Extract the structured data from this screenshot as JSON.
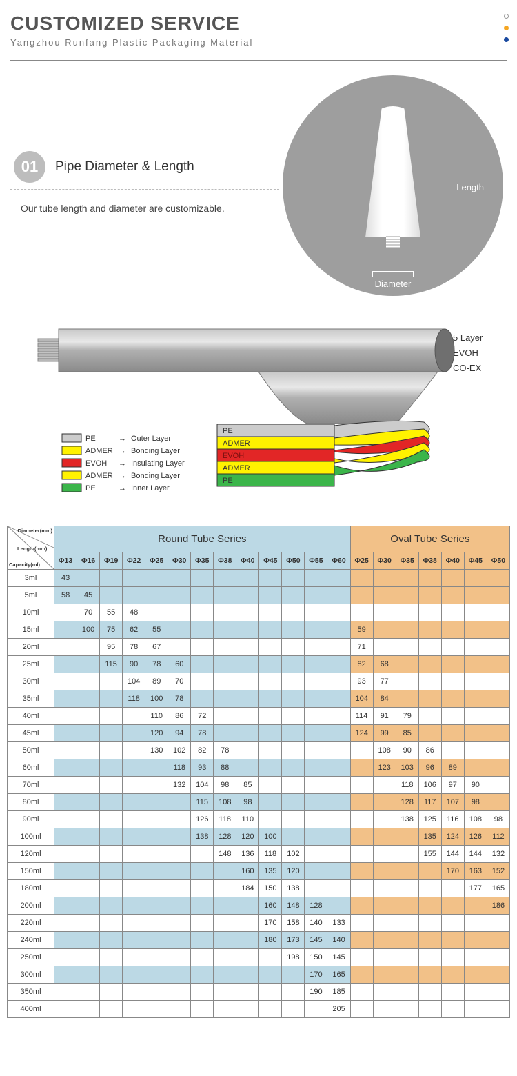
{
  "header": {
    "title": "CUSTOMIZED SERVICE",
    "subtitle": "Yangzhou Runfang Plastic Packaging Material",
    "dot_colors": [
      "#ffffff",
      "#f5a623",
      "#1a4aa0"
    ],
    "dot_border": "#999999"
  },
  "section1": {
    "step_number": "01",
    "step_title": "Pipe Diameter & Length",
    "description": "Our tube length and diameter are customizable.",
    "length_label": "Length",
    "diameter_label": "Diameter",
    "circle_bg": "#9e9e9e",
    "badge_bg": "#bdbdbd"
  },
  "diagram": {
    "side_labels": [
      "5 Layer",
      "EVOH",
      "CO-EX"
    ],
    "tube_color": "#9e9e9e",
    "arrow_color": "#444444",
    "legend": [
      {
        "color": "#cccccc",
        "name": "PE",
        "desc": "Outer Layer"
      },
      {
        "color": "#fff200",
        "name": "ADMER",
        "desc": "Bonding Layer"
      },
      {
        "color": "#e22626",
        "name": "EVOH",
        "desc": "Insulating Layer"
      },
      {
        "color": "#fff200",
        "name": "ADMER",
        "desc": "Bonding Layer"
      },
      {
        "color": "#3bb54a",
        "name": "PE",
        "desc": "Inner Layer"
      }
    ],
    "stack": [
      {
        "color": "#cccccc",
        "label": "PE",
        "text": "#333333"
      },
      {
        "color": "#fff200",
        "label": "ADMER",
        "text": "#333333"
      },
      {
        "color": "#e22626",
        "label": "EVOH",
        "text": "#7a1010"
      },
      {
        "color": "#fff200",
        "label": "ADMER",
        "text": "#333333"
      },
      {
        "color": "#3bb54a",
        "label": "PE",
        "text": "#333333"
      }
    ]
  },
  "table": {
    "corner_labels": {
      "diameter": "Diameter(mm)",
      "length": "Length(mm)",
      "capacity": "Capacity(ml)"
    },
    "colors": {
      "round_header_bg": "#bcd9e5",
      "oval_header_bg": "#f2c188",
      "round_row_bg": "#bcd9e5",
      "oval_row_bg": "#f2c188",
      "white_bg": "#ffffff",
      "border": "#888888",
      "corner_bg": "#ffffff"
    },
    "round": {
      "title": "Round Tube Series",
      "diameters": [
        "Φ13",
        "Φ16",
        "Φ19",
        "Φ22",
        "Φ25",
        "Φ30",
        "Φ35",
        "Φ38",
        "Φ40",
        "Φ45",
        "Φ50",
        "Φ55",
        "Φ60"
      ]
    },
    "oval": {
      "title": "Oval Tube Series",
      "diameters": [
        "Φ25",
        "Φ30",
        "Φ35",
        "Φ38",
        "Φ40",
        "Φ45",
        "Φ50"
      ]
    },
    "capacities": [
      "3ml",
      "5ml",
      "10ml",
      "15ml",
      "20ml",
      "25ml",
      "30ml",
      "35ml",
      "40ml",
      "45ml",
      "50ml",
      "60ml",
      "70ml",
      "80ml",
      "90ml",
      "100ml",
      "120ml",
      "150ml",
      "180ml",
      "200ml",
      "220ml",
      "240ml",
      "250ml",
      "300ml",
      "350ml",
      "400ml"
    ],
    "shaded_rows": [
      0,
      1,
      3,
      5,
      7,
      9,
      11,
      13,
      15,
      17,
      19,
      21,
      23
    ],
    "round_data": [
      [
        "43",
        "",
        "",
        "",
        "",
        "",
        "",
        "",
        "",
        "",
        "",
        "",
        ""
      ],
      [
        "58",
        "45",
        "",
        "",
        "",
        "",
        "",
        "",
        "",
        "",
        "",
        "",
        ""
      ],
      [
        "",
        "70",
        "55",
        "48",
        "",
        "",
        "",
        "",
        "",
        "",
        "",
        "",
        ""
      ],
      [
        "",
        "100",
        "75",
        "62",
        "55",
        "",
        "",
        "",
        "",
        "",
        "",
        "",
        ""
      ],
      [
        "",
        "",
        "95",
        "78",
        "67",
        "",
        "",
        "",
        "",
        "",
        "",
        "",
        ""
      ],
      [
        "",
        "",
        "115",
        "90",
        "78",
        "60",
        "",
        "",
        "",
        "",
        "",
        "",
        ""
      ],
      [
        "",
        "",
        "",
        "104",
        "89",
        "70",
        "",
        "",
        "",
        "",
        "",
        "",
        ""
      ],
      [
        "",
        "",
        "",
        "118",
        "100",
        "78",
        "",
        "",
        "",
        "",
        "",
        "",
        ""
      ],
      [
        "",
        "",
        "",
        "",
        "110",
        "86",
        "72",
        "",
        "",
        "",
        "",
        "",
        ""
      ],
      [
        "",
        "",
        "",
        "",
        "120",
        "94",
        "78",
        "",
        "",
        "",
        "",
        "",
        ""
      ],
      [
        "",
        "",
        "",
        "",
        "130",
        "102",
        "82",
        "78",
        "",
        "",
        "",
        "",
        ""
      ],
      [
        "",
        "",
        "",
        "",
        "",
        "118",
        "93",
        "88",
        "",
        "",
        "",
        "",
        ""
      ],
      [
        "",
        "",
        "",
        "",
        "",
        "132",
        "104",
        "98",
        "85",
        "",
        "",
        "",
        ""
      ],
      [
        "",
        "",
        "",
        "",
        "",
        "",
        "115",
        "108",
        "98",
        "",
        "",
        "",
        ""
      ],
      [
        "",
        "",
        "",
        "",
        "",
        "",
        "126",
        "118",
        "110",
        "",
        "",
        "",
        ""
      ],
      [
        "",
        "",
        "",
        "",
        "",
        "",
        "138",
        "128",
        "120",
        "100",
        "",
        "",
        ""
      ],
      [
        "",
        "",
        "",
        "",
        "",
        "",
        "",
        "148",
        "136",
        "118",
        "102",
        "",
        ""
      ],
      [
        "",
        "",
        "",
        "",
        "",
        "",
        "",
        "",
        "160",
        "135",
        "120",
        "",
        ""
      ],
      [
        "",
        "",
        "",
        "",
        "",
        "",
        "",
        "",
        "184",
        "150",
        "138",
        "",
        ""
      ],
      [
        "",
        "",
        "",
        "",
        "",
        "",
        "",
        "",
        "",
        "160",
        "148",
        "128",
        ""
      ],
      [
        "",
        "",
        "",
        "",
        "",
        "",
        "",
        "",
        "",
        "170",
        "158",
        "140",
        "133"
      ],
      [
        "",
        "",
        "",
        "",
        "",
        "",
        "",
        "",
        "",
        "180",
        "173",
        "145",
        "140"
      ],
      [
        "",
        "",
        "",
        "",
        "",
        "",
        "",
        "",
        "",
        "",
        "198",
        "150",
        "145"
      ],
      [
        "",
        "",
        "",
        "",
        "",
        "",
        "",
        "",
        "",
        "",
        "",
        "170",
        "165"
      ],
      [
        "",
        "",
        "",
        "",
        "",
        "",
        "",
        "",
        "",
        "",
        "",
        "190",
        "185"
      ],
      [
        "",
        "",
        "",
        "",
        "",
        "",
        "",
        "",
        "",
        "",
        "",
        "",
        "205"
      ]
    ],
    "oval_data": [
      [
        "",
        "",
        "",
        "",
        "",
        "",
        ""
      ],
      [
        "",
        "",
        "",
        "",
        "",
        "",
        ""
      ],
      [
        "",
        "",
        "",
        "",
        "",
        "",
        ""
      ],
      [
        "59",
        "",
        "",
        "",
        "",
        "",
        ""
      ],
      [
        "71",
        "",
        "",
        "",
        "",
        "",
        ""
      ],
      [
        "82",
        "68",
        "",
        "",
        "",
        "",
        ""
      ],
      [
        "93",
        "77",
        "",
        "",
        "",
        "",
        ""
      ],
      [
        "104",
        "84",
        "",
        "",
        "",
        "",
        ""
      ],
      [
        "114",
        "91",
        "79",
        "",
        "",
        "",
        ""
      ],
      [
        "124",
        "99",
        "85",
        "",
        "",
        "",
        ""
      ],
      [
        "",
        "108",
        "90",
        "86",
        "",
        "",
        ""
      ],
      [
        "",
        "123",
        "103",
        "96",
        "89",
        "",
        ""
      ],
      [
        "",
        "",
        "118",
        "106",
        "97",
        "90",
        ""
      ],
      [
        "",
        "",
        "128",
        "117",
        "107",
        "98",
        ""
      ],
      [
        "",
        "",
        "138",
        "125",
        "116",
        "108",
        "98"
      ],
      [
        "",
        "",
        "",
        "135",
        "124",
        "126",
        "112"
      ],
      [
        "",
        "",
        "",
        "155",
        "144",
        "144",
        "132"
      ],
      [
        "",
        "",
        "",
        "",
        "170",
        "163",
        "152"
      ],
      [
        "",
        "",
        "",
        "",
        "",
        "177",
        "165"
      ],
      [
        "",
        "",
        "",
        "",
        "",
        "",
        "186"
      ],
      [
        "",
        "",
        "",
        "",
        "",
        "",
        ""
      ],
      [
        "",
        "",
        "",
        "",
        "",
        "",
        ""
      ],
      [
        "",
        "",
        "",
        "",
        "",
        "",
        ""
      ],
      [
        "",
        "",
        "",
        "",
        "",
        "",
        ""
      ],
      [
        "",
        "",
        "",
        "",
        "",
        "",
        ""
      ],
      [
        "",
        "",
        "",
        "",
        "",
        "",
        ""
      ]
    ]
  }
}
